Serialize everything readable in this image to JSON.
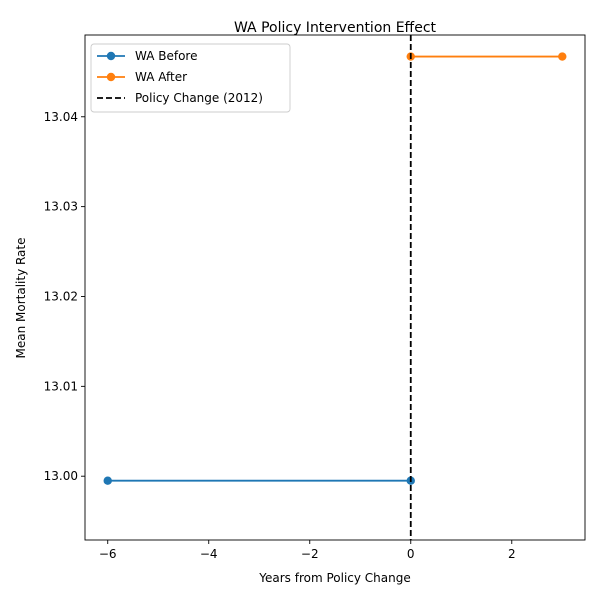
{
  "chart_data": {
    "type": "line",
    "title": "WA Policy Intervention Effect",
    "xlabel": "Years from Policy Change",
    "ylabel": "Mean Mortality Rate",
    "xlim": [
      -6.45,
      3.45
    ],
    "ylim": [
      12.9929,
      13.0491
    ],
    "xticks": [
      -6,
      -4,
      -2,
      0,
      2
    ],
    "xtick_labels": [
      "−6",
      "−4",
      "−2",
      "0",
      "2"
    ],
    "yticks": [
      13.0,
      13.01,
      13.02,
      13.03,
      13.04
    ],
    "ytick_labels": [
      "13.00",
      "13.01",
      "13.02",
      "13.03",
      "13.04"
    ],
    "grid": false,
    "legend_position": "top-left",
    "series": [
      {
        "name": "WA Before",
        "color": "#1f77b4",
        "marker": "circle",
        "x": [
          -6,
          0
        ],
        "y": [
          12.9995,
          12.9995
        ]
      },
      {
        "name": "WA After",
        "color": "#ff7f0e",
        "marker": "circle",
        "x": [
          0,
          3
        ],
        "y": [
          13.0467,
          13.0467
        ]
      }
    ],
    "reference_line": {
      "name": "Policy Change (2012)",
      "x": 0,
      "color": "#000000",
      "style": "dashed"
    }
  }
}
